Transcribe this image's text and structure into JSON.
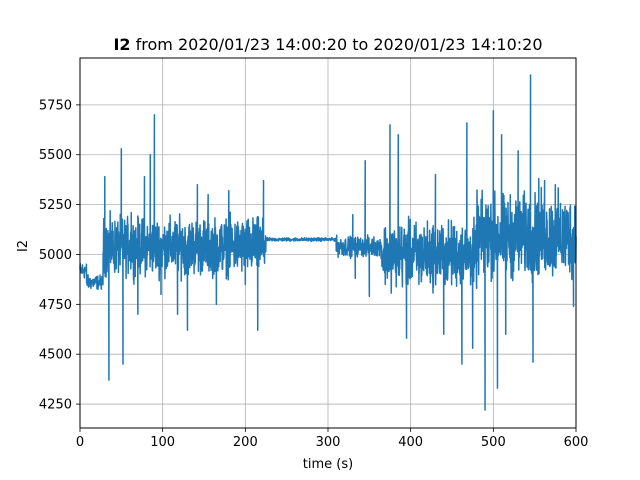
{
  "chart_data": {
    "type": "line",
    "title_bold": "I2",
    "title_rest": " from 2020/01/23 14:00:20 to 2020/01/23 14:10:20",
    "xlabel": "time (s)",
    "ylabel": "I2",
    "xlim": [
      0,
      600
    ],
    "ylim": [
      4130,
      5985
    ],
    "xticks": [
      0,
      100,
      200,
      300,
      400,
      500,
      600
    ],
    "yticks": [
      4250,
      4500,
      4750,
      5000,
      5250,
      5500,
      5750
    ],
    "grid": true,
    "line_color": "#1f77b4",
    "segments": [
      {
        "start": 0,
        "end": 8,
        "center": 4920,
        "amp": 60
      },
      {
        "start": 8,
        "end": 28,
        "center": 4860,
        "amp": 50
      },
      {
        "start": 28,
        "end": 225,
        "center": 5040,
        "amp": 200
      },
      {
        "start": 225,
        "end": 310,
        "center": 5075,
        "amp": 12
      },
      {
        "start": 310,
        "end": 365,
        "center": 5040,
        "amp": 70
      },
      {
        "start": 365,
        "end": 480,
        "center": 5000,
        "amp": 230
      },
      {
        "start": 480,
        "end": 600,
        "center": 5090,
        "amp": 290
      }
    ],
    "spikes": [
      {
        "x": 30,
        "y": 5390
      },
      {
        "x": 35,
        "y": 4370
      },
      {
        "x": 50,
        "y": 5530
      },
      {
        "x": 52,
        "y": 4450
      },
      {
        "x": 62,
        "y": 5210
      },
      {
        "x": 70,
        "y": 4700
      },
      {
        "x": 78,
        "y": 5390
      },
      {
        "x": 85,
        "y": 5500
      },
      {
        "x": 90,
        "y": 5700
      },
      {
        "x": 98,
        "y": 4800
      },
      {
        "x": 118,
        "y": 4700
      },
      {
        "x": 130,
        "y": 4620
      },
      {
        "x": 142,
        "y": 5350
      },
      {
        "x": 155,
        "y": 5300
      },
      {
        "x": 165,
        "y": 4750
      },
      {
        "x": 180,
        "y": 5320
      },
      {
        "x": 200,
        "y": 4850
      },
      {
        "x": 215,
        "y": 4620
      },
      {
        "x": 222,
        "y": 5370
      },
      {
        "x": 330,
        "y": 5200
      },
      {
        "x": 333,
        "y": 4880
      },
      {
        "x": 345,
        "y": 5470
      },
      {
        "x": 350,
        "y": 4790
      },
      {
        "x": 375,
        "y": 5650
      },
      {
        "x": 385,
        "y": 5600
      },
      {
        "x": 395,
        "y": 4580
      },
      {
        "x": 410,
        "y": 4850
      },
      {
        "x": 430,
        "y": 5400
      },
      {
        "x": 440,
        "y": 4600
      },
      {
        "x": 462,
        "y": 4450
      },
      {
        "x": 468,
        "y": 5660
      },
      {
        "x": 475,
        "y": 4530
      },
      {
        "x": 490,
        "y": 4220
      },
      {
        "x": 500,
        "y": 5720
      },
      {
        "x": 505,
        "y": 4330
      },
      {
        "x": 510,
        "y": 5600
      },
      {
        "x": 515,
        "y": 4600
      },
      {
        "x": 530,
        "y": 5520
      },
      {
        "x": 545,
        "y": 5900
      },
      {
        "x": 548,
        "y": 4460
      },
      {
        "x": 555,
        "y": 5380
      },
      {
        "x": 562,
        "y": 5370
      },
      {
        "x": 575,
        "y": 5350
      },
      {
        "x": 585,
        "y": 4960
      },
      {
        "x": 597,
        "y": 4740
      }
    ]
  }
}
